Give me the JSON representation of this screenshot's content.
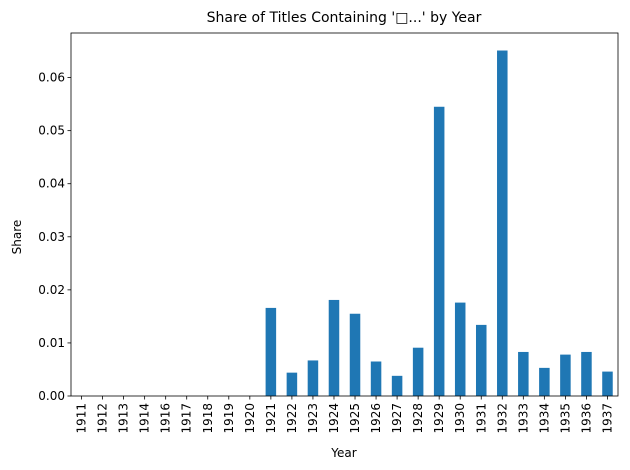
{
  "chart_data": {
    "type": "bar",
    "title": "Share of Titles Containing '□...' by Year",
    "xlabel": "Year",
    "ylabel": "Share",
    "categories": [
      "1911",
      "1912",
      "1913",
      "1914",
      "1916",
      "1917",
      "1918",
      "1919",
      "1920",
      "1921",
      "1922",
      "1923",
      "1924",
      "1925",
      "1926",
      "1927",
      "1928",
      "1929",
      "1930",
      "1931",
      "1932",
      "1933",
      "1934",
      "1935",
      "1936",
      "1937"
    ],
    "values": [
      0,
      0,
      0,
      0,
      0,
      0,
      0,
      0,
      0,
      0.0166,
      0.0044,
      0.0067,
      0.0181,
      0.0155,
      0.0065,
      0.0038,
      0.0091,
      0.0545,
      0.0176,
      0.0134,
      0.0651,
      0.0083,
      0.0053,
      0.0078,
      0.0083,
      0.0046
    ],
    "yticks": [
      "0.00",
      "0.01",
      "0.02",
      "0.03",
      "0.04",
      "0.05",
      "0.06"
    ],
    "ylim": [
      0,
      0.0684
    ],
    "grid": false,
    "bar_color": "#1f77b4"
  }
}
